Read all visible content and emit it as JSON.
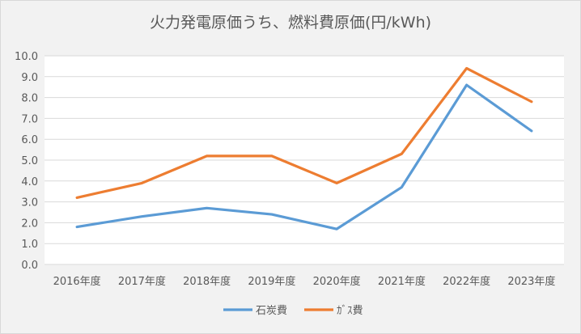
{
  "chart_data": {
    "type": "line",
    "title": "火力発電原価うち、燃料費原価(円/kWh)",
    "xlabel": "",
    "ylabel": "",
    "categories": [
      "2016年度",
      "2017年度",
      "2018年度",
      "2019年度",
      "2020年度",
      "2021年度",
      "2022年度",
      "2023年度"
    ],
    "ylim": [
      0,
      10
    ],
    "yticks": [
      "0.0",
      "1.0",
      "2.0",
      "3.0",
      "4.0",
      "5.0",
      "6.0",
      "7.0",
      "8.0",
      "9.0",
      "10.0"
    ],
    "grid": true,
    "legend_position": "bottom",
    "series": [
      {
        "name": "石炭費",
        "color": "#5b9bd5",
        "values": [
          1.8,
          2.3,
          2.7,
          2.4,
          1.7,
          3.7,
          8.6,
          6.4
        ]
      },
      {
        "name": "ｶﾞｽ費",
        "color": "#ed7d31",
        "values": [
          3.2,
          3.9,
          5.2,
          5.2,
          3.9,
          5.3,
          9.4,
          7.8
        ]
      }
    ]
  }
}
